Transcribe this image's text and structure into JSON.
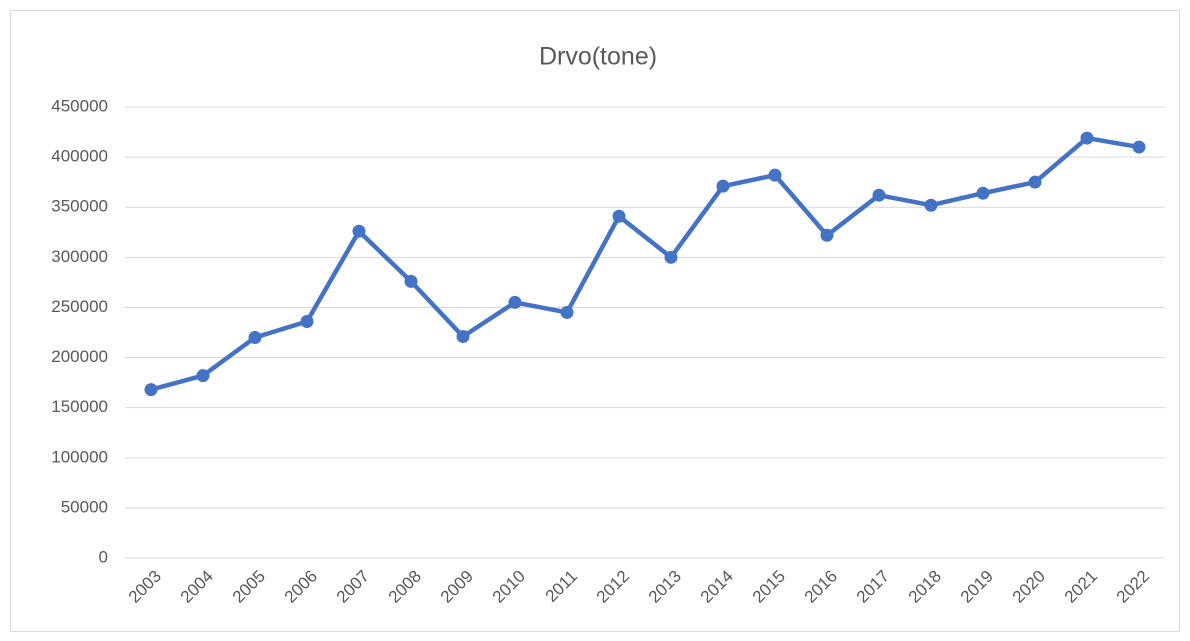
{
  "chart_data": {
    "type": "line",
    "title": "Drvo(tone)",
    "categories": [
      "2003",
      "2004",
      "2005",
      "2006",
      "2007",
      "2008",
      "2009",
      "2010",
      "2011",
      "2012",
      "2013",
      "2014",
      "2015",
      "2016",
      "2017",
      "2018",
      "2019",
      "2020",
      "2021",
      "2022"
    ],
    "values": [
      168000,
      182000,
      220000,
      236000,
      326000,
      276000,
      221000,
      255000,
      245000,
      341000,
      300000,
      371000,
      382000,
      322000,
      362000,
      352000,
      364000,
      375000,
      419000,
      410000
    ],
    "color": "#4472c4",
    "ylim": [
      0,
      450000
    ],
    "yticks": [
      0,
      50000,
      100000,
      150000,
      200000,
      250000,
      300000,
      350000,
      400000,
      450000
    ],
    "grid": true
  }
}
